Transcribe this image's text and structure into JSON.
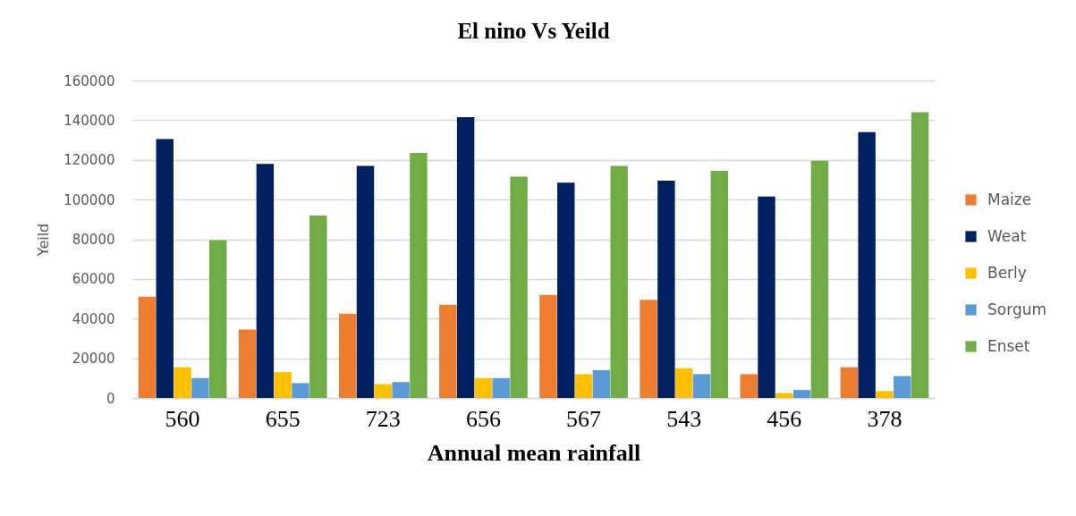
{
  "chart_data": {
    "type": "bar",
    "title": "El nino Vs Yeild",
    "xlabel": "Annual mean rainfall",
    "ylabel": "Yeild",
    "categories": [
      "560",
      "655",
      "723",
      "656",
      "567",
      "543",
      "456",
      "378"
    ],
    "series": [
      {
        "name": "Maize",
        "color": "#ed7d31",
        "values": [
          51000,
          34500,
          42500,
          47000,
          52000,
          49500,
          12000,
          15500
        ]
      },
      {
        "name": "Weat",
        "color": "#002060",
        "values": [
          130500,
          118000,
          117000,
          141500,
          108500,
          109500,
          101500,
          134000
        ]
      },
      {
        "name": "Berly",
        "color": "#ffc000",
        "values": [
          15500,
          13000,
          7000,
          10000,
          12000,
          15000,
          2500,
          3500
        ]
      },
      {
        "name": "Sorgum",
        "color": "#5b9bd5",
        "values": [
          10000,
          7500,
          8000,
          10000,
          14000,
          12000,
          4000,
          11000
        ]
      },
      {
        "name": "Enset",
        "color": "#70ad47",
        "values": [
          79500,
          92000,
          123500,
          111500,
          117000,
          114500,
          119500,
          144000
        ]
      }
    ],
    "ylim": [
      0,
      160000
    ],
    "yticks": [
      0,
      20000,
      40000,
      60000,
      80000,
      100000,
      120000,
      140000,
      160000
    ],
    "grid": "y",
    "legend": "right"
  }
}
